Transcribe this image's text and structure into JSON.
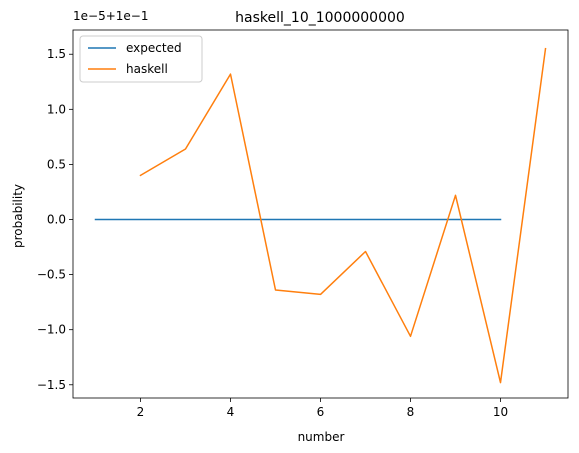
{
  "chart_data": {
    "type": "line",
    "title": "haskell_10_1000000000",
    "xlabel": "number",
    "ylabel": "probability",
    "y_offset_label": "1e−5+1e−1",
    "xlim": [
      0.5,
      11.5
    ],
    "ylim": [
      -1.62,
      1.72
    ],
    "x_ticks": [
      2,
      4,
      6,
      8,
      10
    ],
    "x_tick_labels": [
      "2",
      "4",
      "6",
      "8",
      "10"
    ],
    "y_ticks": [
      -1.5,
      -1.0,
      -0.5,
      0.0,
      0.5,
      1.0,
      1.5
    ],
    "y_tick_labels": [
      "−1.5",
      "−1.0",
      "−0.5",
      "0.0",
      "0.5",
      "1.0",
      "1.5"
    ],
    "grid": false,
    "legend_position": "upper-left",
    "series": [
      {
        "name": "expected",
        "color": "#1f77b4",
        "x": [
          1,
          2,
          3,
          4,
          5,
          6,
          7,
          8,
          9,
          10
        ],
        "y": [
          0,
          0,
          0,
          0,
          0,
          0,
          0,
          0,
          0,
          0
        ]
      },
      {
        "name": "haskell",
        "color": "#ff7f0e",
        "x": [
          2,
          3,
          4,
          5,
          6,
          7,
          8,
          9,
          10,
          11
        ],
        "y": [
          0.4,
          0.64,
          1.32,
          -0.64,
          -0.68,
          -0.29,
          -1.06,
          0.22,
          -1.48,
          1.55
        ]
      }
    ]
  }
}
